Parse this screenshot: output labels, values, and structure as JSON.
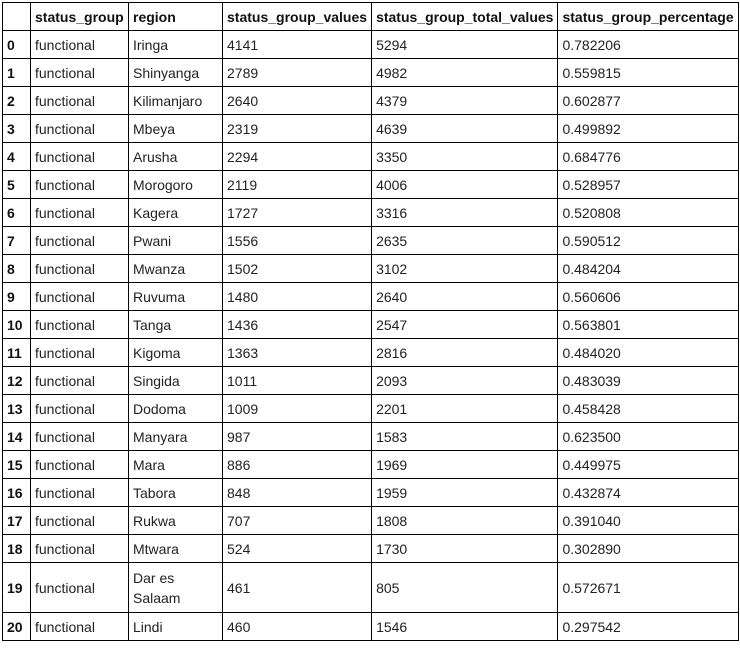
{
  "table": {
    "headers": [
      "",
      "status_group",
      "region",
      "status_group_values",
      "status_group_total_values",
      "status_group_percentage"
    ],
    "rows": [
      {
        "index": "0",
        "status_group": "functional",
        "region": "Iringa",
        "values": "4141",
        "total": "5294",
        "pct": "0.782206"
      },
      {
        "index": "1",
        "status_group": "functional",
        "region": "Shinyanga",
        "values": "2789",
        "total": "4982",
        "pct": "0.559815"
      },
      {
        "index": "2",
        "status_group": "functional",
        "region": "Kilimanjaro",
        "values": "2640",
        "total": "4379",
        "pct": "0.602877"
      },
      {
        "index": "3",
        "status_group": "functional",
        "region": "Mbeya",
        "values": "2319",
        "total": "4639",
        "pct": "0.499892"
      },
      {
        "index": "4",
        "status_group": "functional",
        "region": "Arusha",
        "values": "2294",
        "total": "3350",
        "pct": "0.684776"
      },
      {
        "index": "5",
        "status_group": "functional",
        "region": "Morogoro",
        "values": "2119",
        "total": "4006",
        "pct": "0.528957"
      },
      {
        "index": "6",
        "status_group": "functional",
        "region": "Kagera",
        "values": "1727",
        "total": "3316",
        "pct": "0.520808"
      },
      {
        "index": "7",
        "status_group": "functional",
        "region": "Pwani",
        "values": "1556",
        "total": "2635",
        "pct": "0.590512"
      },
      {
        "index": "8",
        "status_group": "functional",
        "region": "Mwanza",
        "values": "1502",
        "total": "3102",
        "pct": "0.484204"
      },
      {
        "index": "9",
        "status_group": "functional",
        "region": "Ruvuma",
        "values": "1480",
        "total": "2640",
        "pct": "0.560606"
      },
      {
        "index": "10",
        "status_group": "functional",
        "region": "Tanga",
        "values": "1436",
        "total": "2547",
        "pct": "0.563801"
      },
      {
        "index": "11",
        "status_group": "functional",
        "region": "Kigoma",
        "values": "1363",
        "total": "2816",
        "pct": "0.484020"
      },
      {
        "index": "12",
        "status_group": "functional",
        "region": "Singida",
        "values": "1011",
        "total": "2093",
        "pct": "0.483039"
      },
      {
        "index": "13",
        "status_group": "functional",
        "region": "Dodoma",
        "values": "1009",
        "total": "2201",
        "pct": "0.458428"
      },
      {
        "index": "14",
        "status_group": "functional",
        "region": "Manyara",
        "values": "987",
        "total": "1583",
        "pct": "0.623500"
      },
      {
        "index": "15",
        "status_group": "functional",
        "region": "Mara",
        "values": "886",
        "total": "1969",
        "pct": "0.449975"
      },
      {
        "index": "16",
        "status_group": "functional",
        "region": "Tabora",
        "values": "848",
        "total": "1959",
        "pct": "0.432874"
      },
      {
        "index": "17",
        "status_group": "functional",
        "region": "Rukwa",
        "values": "707",
        "total": "1808",
        "pct": "0.391040"
      },
      {
        "index": "18",
        "status_group": "functional",
        "region": "Mtwara",
        "values": "524",
        "total": "1730",
        "pct": "0.302890"
      },
      {
        "index": "19",
        "status_group": "functional",
        "region": "Dar es Salaam",
        "values": "461",
        "total": "805",
        "pct": "0.572671"
      },
      {
        "index": "20",
        "status_group": "functional",
        "region": "Lindi",
        "values": "460",
        "total": "1546",
        "pct": "0.297542"
      }
    ]
  }
}
